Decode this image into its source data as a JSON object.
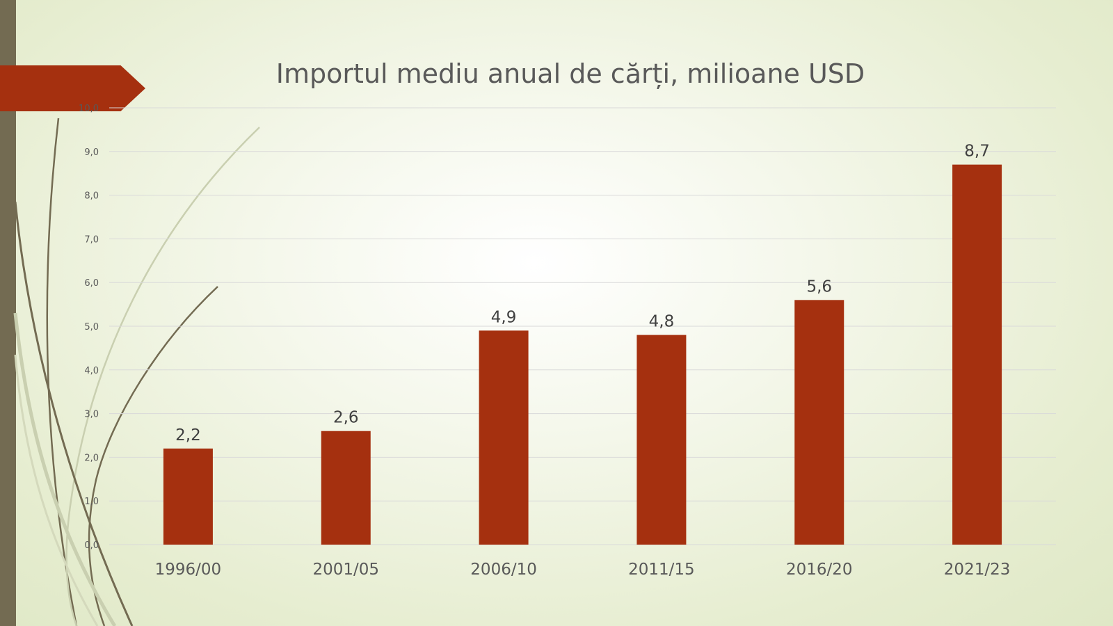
{
  "chart_data": {
    "type": "bar",
    "title": "Importul mediu anual de cărți, milioane USD",
    "categories": [
      "1996/00",
      "2001/05",
      "2006/10",
      "2011/15",
      "2016/20",
      "2021/23"
    ],
    "values": [
      2.2,
      2.6,
      4.9,
      4.8,
      5.6,
      8.7
    ],
    "value_labels": [
      "2,2",
      "2,6",
      "4,9",
      "4,8",
      "5,6",
      "8,7"
    ],
    "y_ticks": [
      "0,0",
      "1,0",
      "2,0",
      "3,0",
      "4,0",
      "5,0",
      "6,0",
      "7,0",
      "8,0",
      "9,0",
      "10,0"
    ],
    "ylim": [
      0,
      10
    ],
    "grid": true,
    "legend": "none",
    "xlabel": "",
    "ylabel": "",
    "colors": {
      "bar": "#a5300f",
      "accent_bar": "#736b52"
    }
  }
}
